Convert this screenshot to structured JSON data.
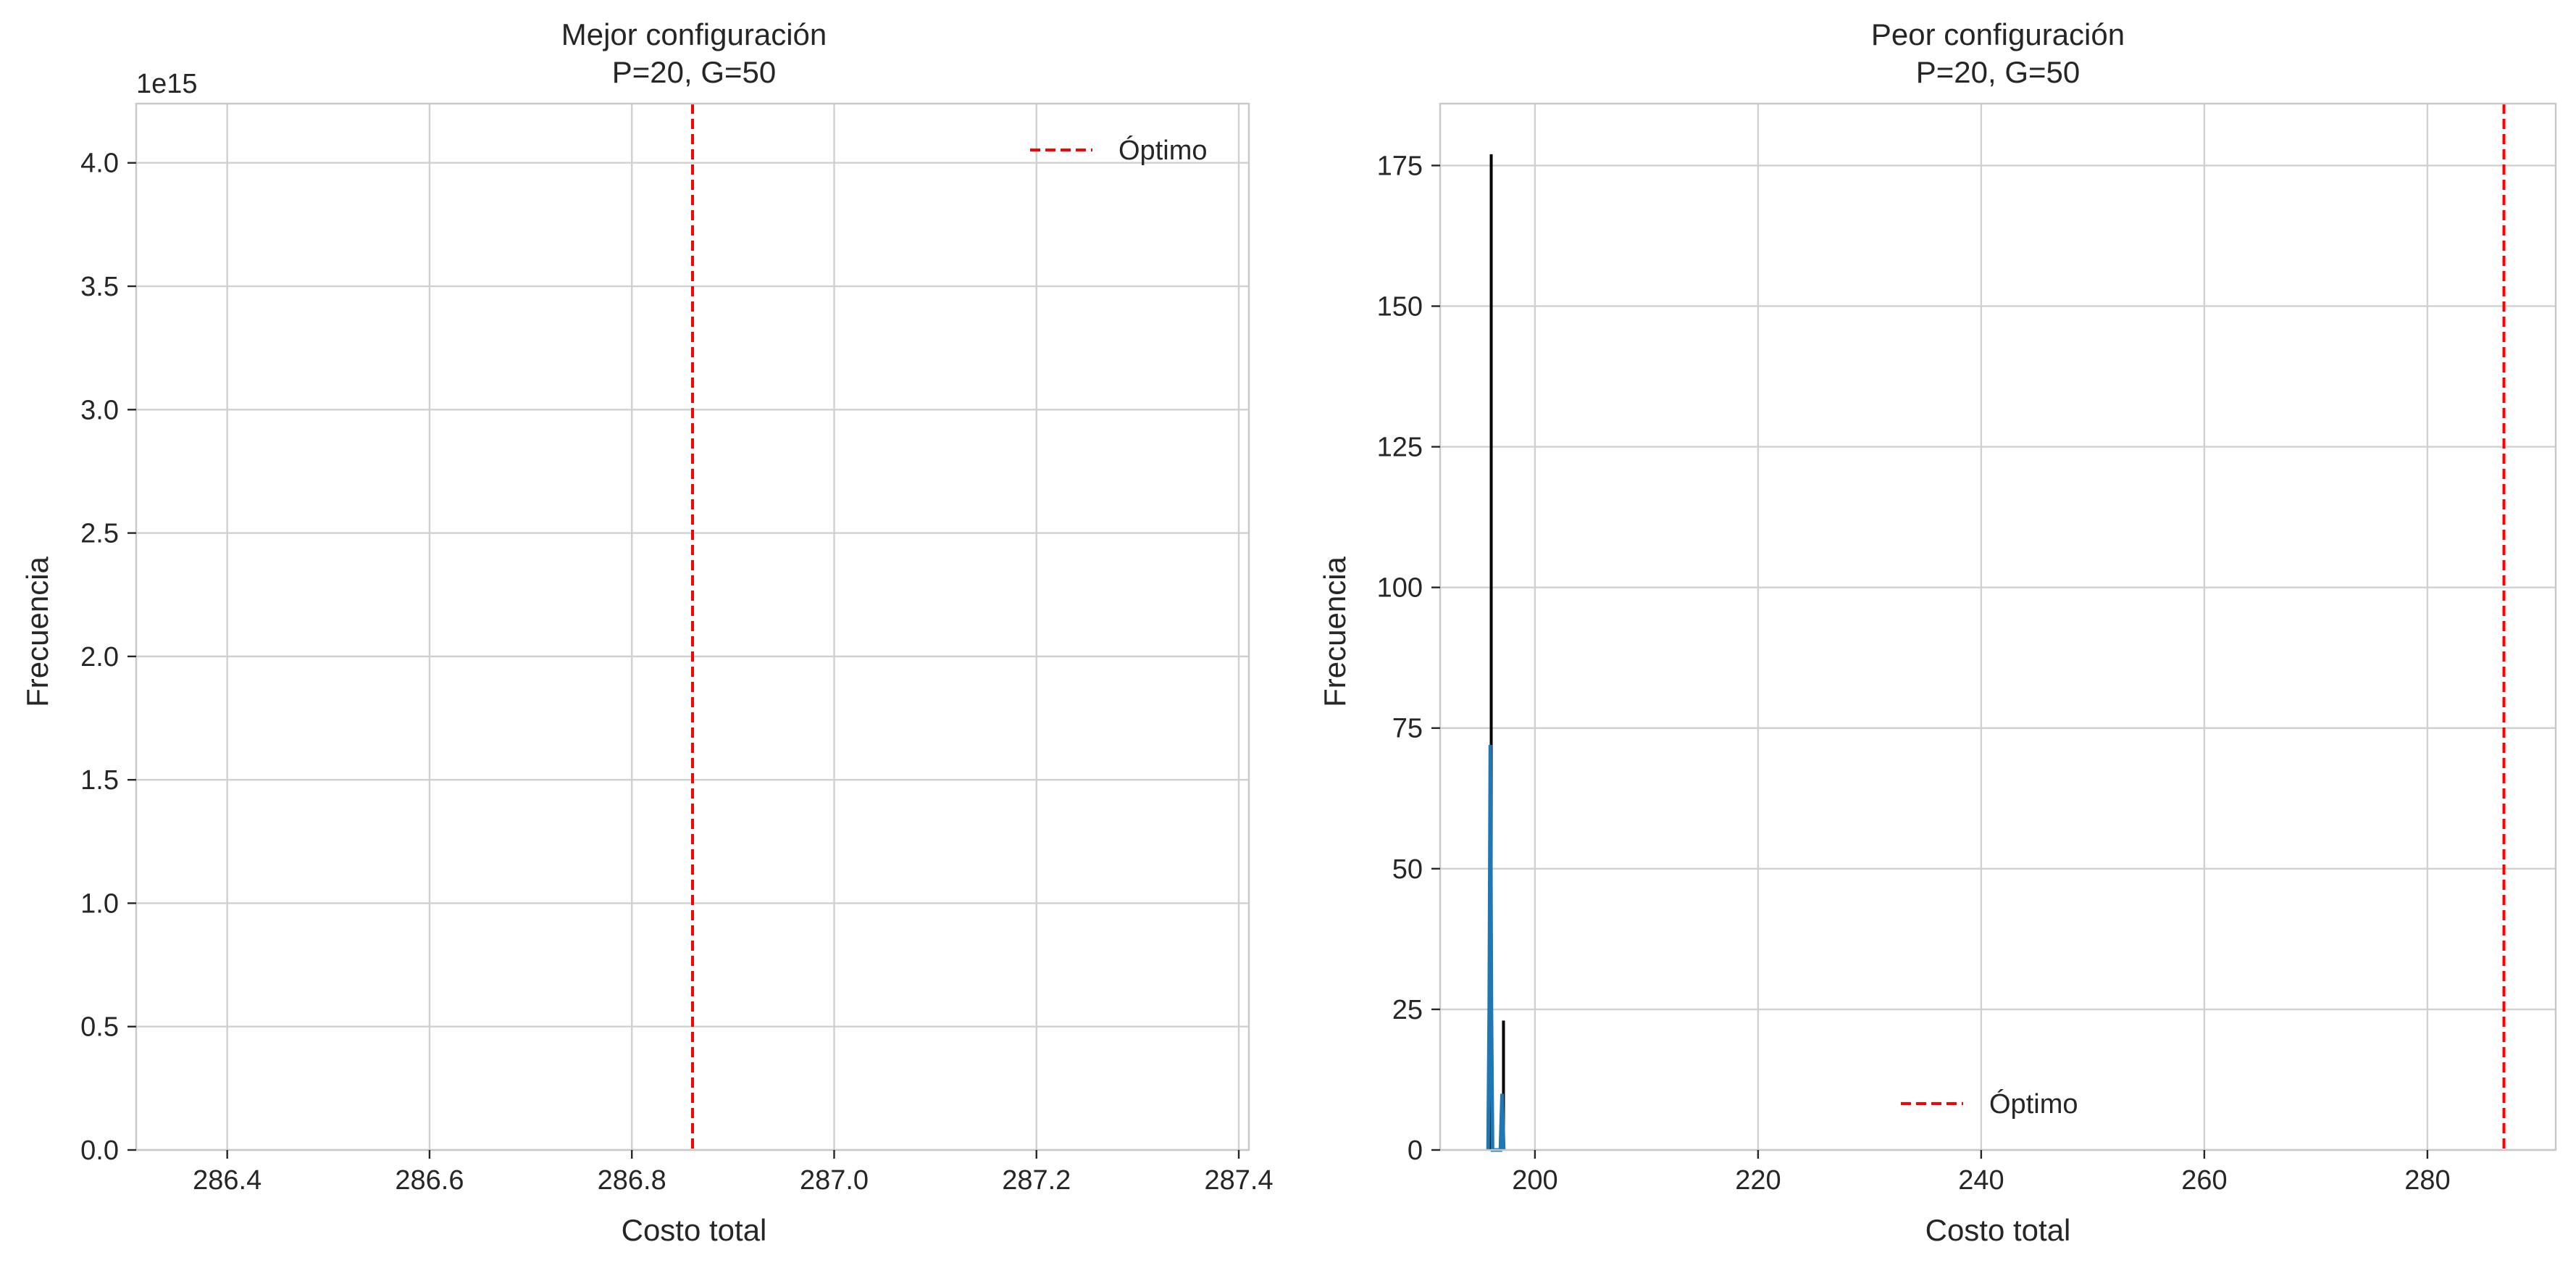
{
  "figure": {
    "background": "#ffffff"
  },
  "chart_data": [
    {
      "type": "bar",
      "title": "Mejor configuración\nP=20, G=50",
      "title_lines": [
        "Mejor configuración",
        "P=20, G=50"
      ],
      "xlabel": "Costo total",
      "ylabel": "Frecuencia",
      "xlim": [
        286.31,
        287.41
      ],
      "ylim": [
        0,
        4.24
      ],
      "x_ticks": [
        286.4,
        286.6,
        286.8,
        287.0,
        287.2,
        287.4
      ],
      "x_tick_labels": [
        "286.4",
        "286.6",
        "286.8",
        "287.0",
        "287.2",
        "287.4"
      ],
      "y_ticks": [
        0,
        0.5,
        1.0,
        1.5,
        2.0,
        2.5,
        3.0,
        3.5,
        4.0
      ],
      "y_tick_labels": [
        "0.0",
        "0.5",
        "1.0",
        "1.5",
        "2.0",
        "2.5",
        "3.0",
        "3.5",
        "4.0"
      ],
      "y_offset_text": "1e15",
      "grid": true,
      "bars": [],
      "kde": [],
      "reference_line": {
        "label": "Óptimo",
        "x": 286.86,
        "color": "#ff0000",
        "style": "dashed"
      },
      "legend": {
        "placement": "upper right",
        "entries": [
          "Óptimo"
        ]
      }
    },
    {
      "type": "bar",
      "title": "Peor configuración\nP=20, G=50",
      "title_lines": [
        "Peor configuración",
        "P=20, G=50"
      ],
      "xlabel": "Costo total",
      "ylabel": "Frecuencia",
      "xlim": [
        191.5,
        291.5
      ],
      "ylim": [
        0,
        186
      ],
      "x_ticks": [
        200,
        220,
        240,
        260,
        280
      ],
      "x_tick_labels": [
        "200",
        "220",
        "240",
        "260",
        "280"
      ],
      "y_ticks": [
        0,
        25,
        50,
        75,
        100,
        125,
        150,
        175
      ],
      "y_tick_labels": [
        "0",
        "25",
        "50",
        "75",
        "100",
        "125",
        "150",
        "175"
      ],
      "grid": true,
      "bars": [
        {
          "x0": 195.95,
          "x1": 196.05,
          "value": 177
        },
        {
          "x0": 197.05,
          "x1": 197.15,
          "value": 23
        }
      ],
      "bar_color": "#000000",
      "kde": [
        {
          "x": 195.8,
          "y": 0
        },
        {
          "x": 195.9,
          "y": 25
        },
        {
          "x": 196.0,
          "y": 72
        },
        {
          "x": 196.1,
          "y": 25
        },
        {
          "x": 196.2,
          "y": 0
        },
        {
          "x": 196.9,
          "y": 0
        },
        {
          "x": 197.05,
          "y": 10
        },
        {
          "x": 197.2,
          "y": 0
        }
      ],
      "kde_color": "#1f77b4",
      "reference_line": {
        "label": "Óptimo",
        "x": 286.86,
        "color": "#ff0000",
        "style": "dashed"
      },
      "legend": {
        "placement": "lower center",
        "entries": [
          "Óptimo"
        ]
      }
    }
  ]
}
